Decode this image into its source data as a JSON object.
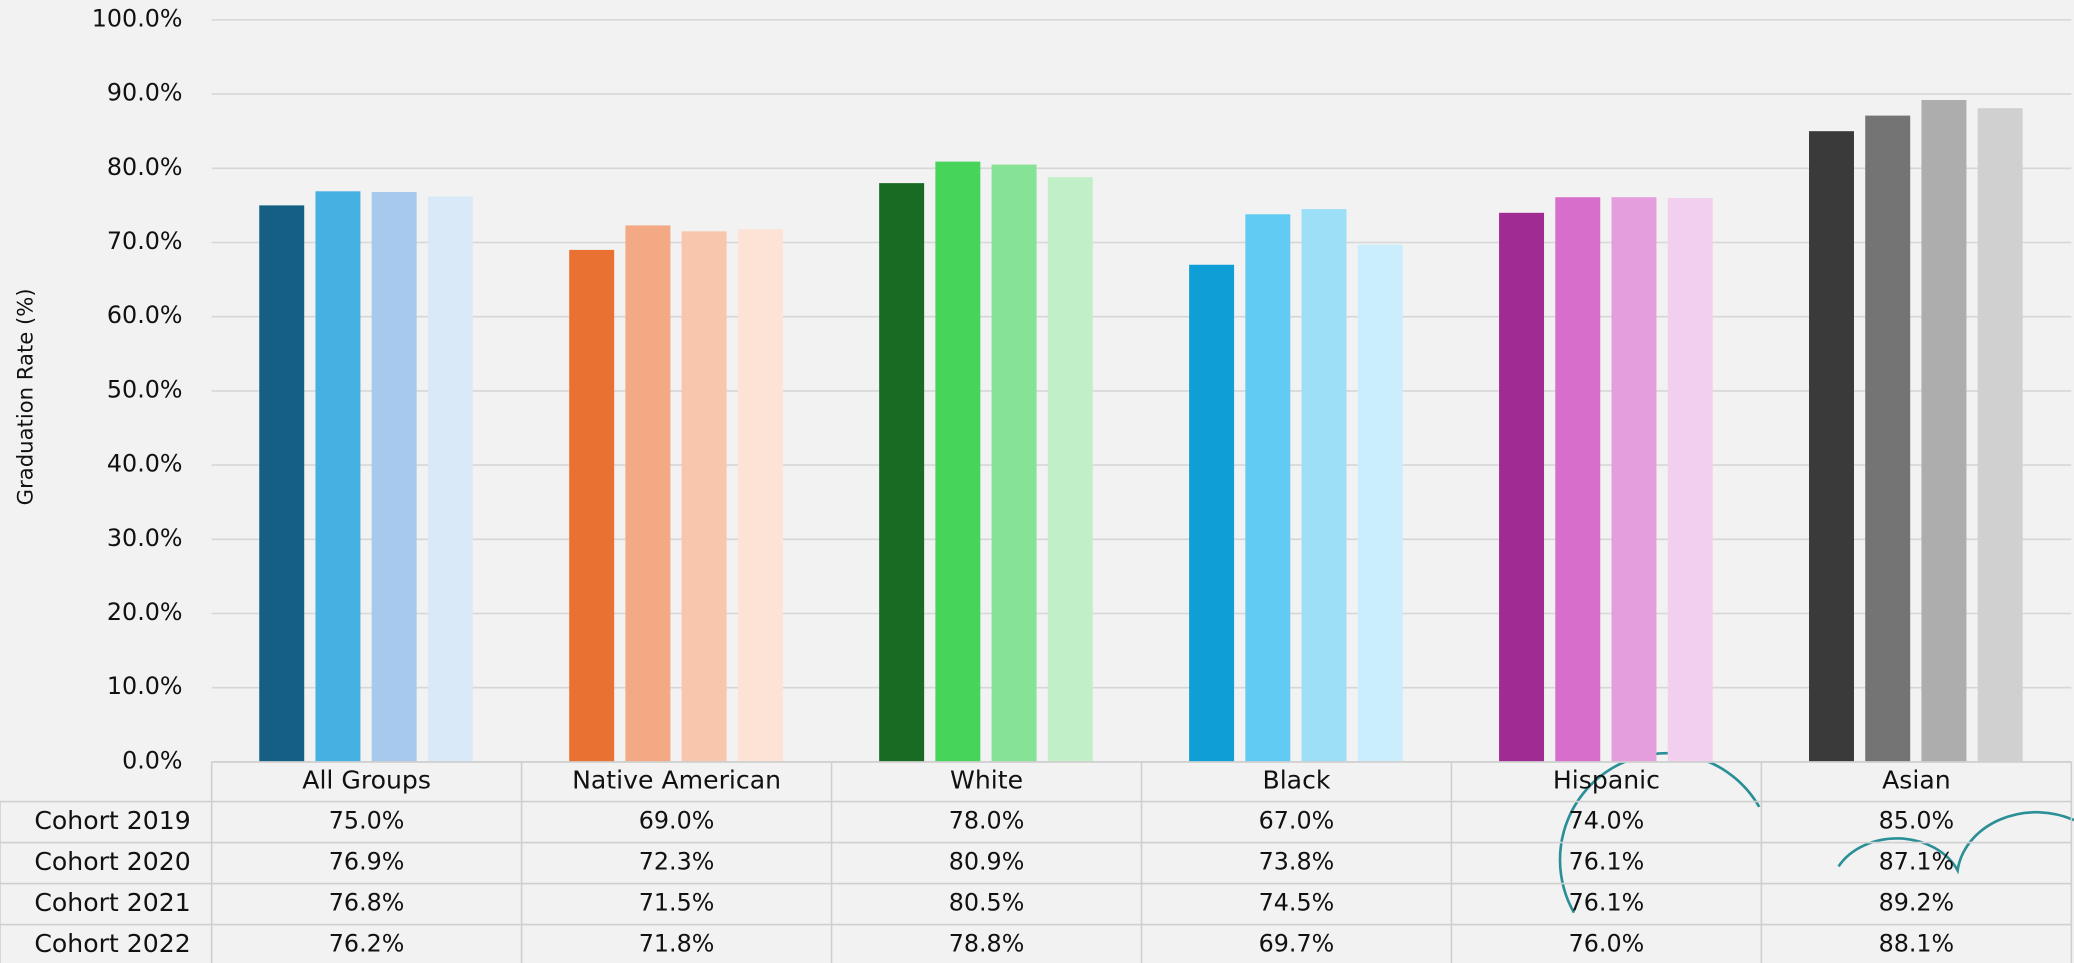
{
  "chart_data": {
    "type": "bar",
    "y_label": "Graduation Rate (%)",
    "categories": [
      "All Groups",
      "Native American",
      "White",
      "Black",
      "Hispanic",
      "Asian"
    ],
    "series": [
      {
        "name": "Cohort 2019",
        "colors": [
          "#155f84",
          "#e97132",
          "#196b24",
          "#0f9ed5",
          "#a02b93",
          "#3a3a3a"
        ],
        "values": [
          75.0,
          69.0,
          78.0,
          67.0,
          74.0,
          85.0
        ],
        "value_labels": [
          "75.0%",
          "69.0%",
          "78.0%",
          "67.0%",
          "74.0%",
          "85.0%"
        ]
      },
      {
        "name": "Cohort 2020",
        "colors": [
          "#47b0e3",
          "#f2a984",
          "#47d45b",
          "#61cbf3",
          "#d86ecc",
          "#747474"
        ],
        "values": [
          76.9,
          72.3,
          80.9,
          73.8,
          76.1,
          87.1
        ],
        "value_labels": [
          "76.9%",
          "72.3%",
          "80.9%",
          "73.8%",
          "76.1%",
          "87.1%"
        ]
      },
      {
        "name": "Cohort 2021",
        "colors": [
          "#a7c9ed",
          "#f7c6ac",
          "#86e295",
          "#9ddff7",
          "#e59edd",
          "#adadad"
        ],
        "values": [
          76.8,
          71.5,
          80.5,
          74.5,
          76.1,
          89.2
        ],
        "value_labels": [
          "76.8%",
          "71.5%",
          "80.5%",
          "74.5%",
          "76.1%",
          "89.2%"
        ]
      },
      {
        "name": "Cohort 2022",
        "colors": [
          "#dae9f8",
          "#fce3d6",
          "#c1f0c8",
          "#caeefb",
          "#f2cfee",
          "#d0d0d0"
        ],
        "values": [
          76.2,
          71.8,
          78.8,
          69.7,
          76.0,
          88.1
        ],
        "value_labels": [
          "76.2%",
          "71.8%",
          "78.8%",
          "69.7%",
          "76.0%",
          "88.1%"
        ]
      }
    ],
    "ylim": [
      0,
      100
    ],
    "yticks": [
      {
        "value": 0,
        "label": "0.0%"
      },
      {
        "value": 10,
        "label": "10.0%"
      },
      {
        "value": 20,
        "label": "20.0%"
      },
      {
        "value": 30,
        "label": "30.0%"
      },
      {
        "value": 40,
        "label": "40.0%"
      },
      {
        "value": 50,
        "label": "50.0%"
      },
      {
        "value": 60,
        "label": "60.0%"
      },
      {
        "value": 70,
        "label": "70.0%"
      },
      {
        "value": 80,
        "label": "80.0%"
      },
      {
        "value": 90,
        "label": "90.0%"
      },
      {
        "value": 100,
        "label": "100.0%"
      }
    ],
    "grid": true
  }
}
